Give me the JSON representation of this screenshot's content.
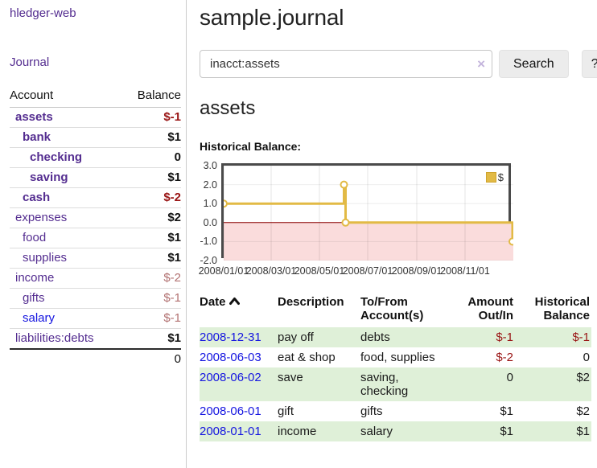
{
  "app": {
    "brand": "hledger-web",
    "nav_journal": "Journal"
  },
  "sidebar": {
    "headers": {
      "account": "Account",
      "balance": "Balance"
    },
    "accounts": [
      {
        "name": "assets",
        "balance": "$-1"
      },
      {
        "name": "bank",
        "balance": "$1"
      },
      {
        "name": "checking",
        "balance": "0"
      },
      {
        "name": "saving",
        "balance": "$1"
      },
      {
        "name": "cash",
        "balance": "$-2"
      },
      {
        "name": "expenses",
        "balance": "$2"
      },
      {
        "name": "food",
        "balance": "$1"
      },
      {
        "name": "supplies",
        "balance": "$1"
      },
      {
        "name": "income",
        "balance": "$-2"
      },
      {
        "name": "gifts",
        "balance": "$-1"
      },
      {
        "name": "salary",
        "balance": "$-1"
      },
      {
        "name": "liabilities:debts",
        "balance": "$1"
      }
    ],
    "total": "0"
  },
  "main": {
    "title": "sample.journal",
    "search": {
      "value": "inacct:assets",
      "clear_icon": "×",
      "button_label": "Search",
      "help_label": "?"
    },
    "account_heading": "assets",
    "chart": {
      "type": "line-step",
      "title": "Historical Balance:",
      "ylim": [
        -2,
        3
      ],
      "y_ticks": [
        "3.0",
        "2.0",
        "1.0",
        "0.0",
        "-1.0",
        "-2.0"
      ],
      "x_ticks": [
        "2008/01/01",
        "2008/03/01",
        "2008/05/01",
        "2008/07/01",
        "2008/09/01",
        "2008/11/01"
      ],
      "x_range": [
        "2008-01-01",
        "2009-01-01"
      ],
      "series": [
        {
          "name": "$",
          "color": "#e2ba45",
          "points": [
            [
              "2008-01-01",
              1
            ],
            [
              "2008-06-01",
              2
            ],
            [
              "2008-06-03",
              0
            ],
            [
              "2008-12-31",
              -1
            ]
          ]
        }
      ],
      "legend_label": "$",
      "legend_position": "top-right",
      "grid": true,
      "negative_region_color": "#fadcdc",
      "zero_line_color": "#8b0000"
    },
    "register": {
      "headers": {
        "date": "Date",
        "description": "Description",
        "accounts": "To/From Account(s)",
        "amount": "Amount Out/In",
        "balance": "Historical Balance"
      },
      "rows": [
        {
          "date": "2008-12-31",
          "description": "pay off",
          "accounts": "debts",
          "amount": "$-1",
          "balance": "$-1"
        },
        {
          "date": "2008-06-03",
          "description": "eat & shop",
          "accounts": "food, supplies",
          "amount": "$-2",
          "balance": "0"
        },
        {
          "date": "2008-06-02",
          "description": "save",
          "accounts": "saving, checking",
          "amount": "0",
          "balance": "$2"
        },
        {
          "date": "2008-06-01",
          "description": "gift",
          "accounts": "gifts",
          "amount": "$1",
          "balance": "$2"
        },
        {
          "date": "2008-01-01",
          "description": "income",
          "accounts": "salary",
          "amount": "$1",
          "balance": "$1"
        }
      ]
    }
  },
  "colors": {
    "link_purple": "#542d90",
    "link_blue": "#1515e0",
    "negative_strong": "#991414",
    "negative_dim": "#b17070",
    "row_green": "#dff0d8",
    "chart_gold": "#e2ba45",
    "negative_region": "#fadcdc",
    "zero_line": "#8b0000"
  }
}
